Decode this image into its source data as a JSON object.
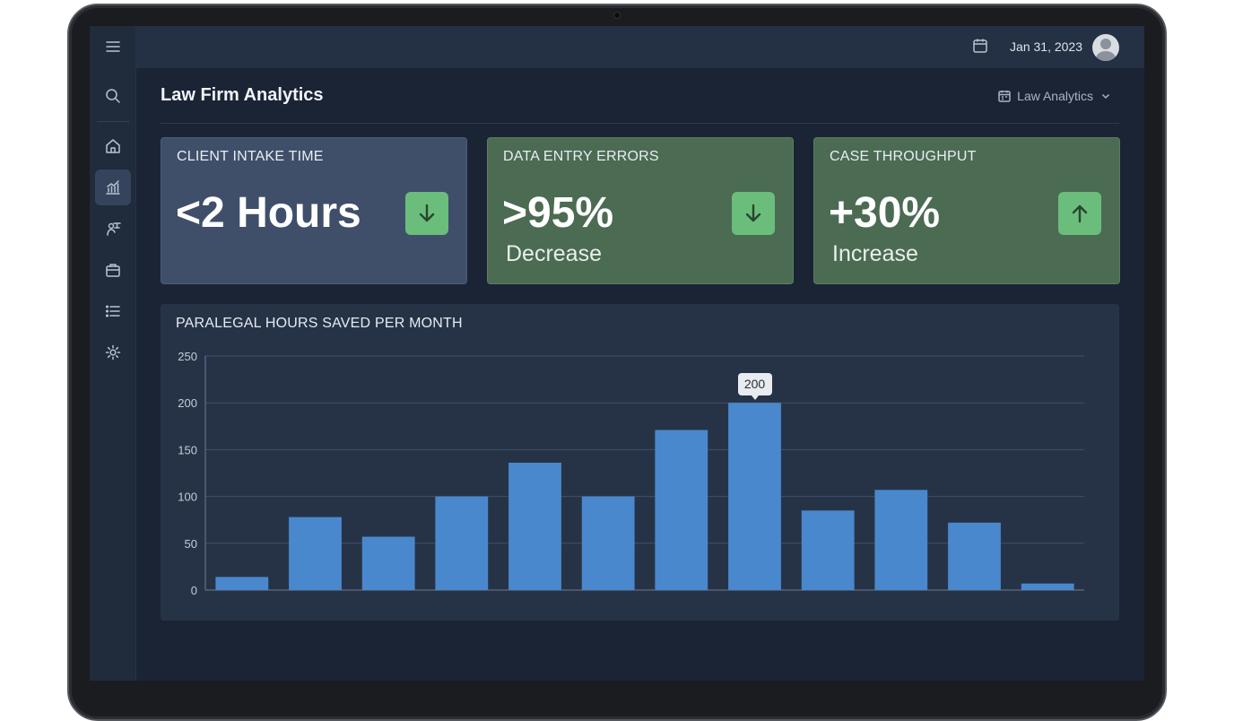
{
  "topbar": {
    "date": "Jan 31, 2023",
    "calendar_icon": "calendar-icon",
    "avatar_icon": "user-avatar"
  },
  "sidebar": {
    "items": [
      {
        "icon": "menu-icon"
      },
      {
        "icon": "search-icon"
      },
      {
        "icon": "home-icon"
      },
      {
        "icon": "analytics-icon",
        "active": true
      },
      {
        "icon": "user-scale-icon"
      },
      {
        "icon": "briefcase-icon"
      },
      {
        "icon": "list-icon"
      },
      {
        "icon": "gear-icon"
      }
    ]
  },
  "header": {
    "title": "Law Firm Analytics",
    "workspace_label": "Law Analytics"
  },
  "kpis": [
    {
      "label": "CLIENT INTAKE TIME",
      "value": "<2 Hours",
      "sub": "",
      "trend": "down",
      "color": "#3f4f6a"
    },
    {
      "label": "DATA ENTRY ERRORS",
      "value": ">95%",
      "sub": "Decrease",
      "trend": "down",
      "color": "#4b6b53"
    },
    {
      "label": "CASE THROUGHPUT",
      "value": "+30%",
      "sub": "Increase",
      "trend": "up",
      "color": "#4b6b53"
    }
  ],
  "colors": {
    "bar": "#4a88cd",
    "badge": "#6bbd7c"
  },
  "chart_data": {
    "type": "bar",
    "title": "PARALEGAL HOURS SAVED PER MONTH",
    "values": [
      14,
      78,
      57,
      100,
      136,
      100,
      171,
      200,
      85,
      107,
      72,
      7
    ],
    "ylim": [
      0,
      250
    ],
    "yticks": [
      0,
      50,
      100,
      150,
      200,
      250
    ],
    "grid": true,
    "highlight": {
      "index": 7,
      "label": "200"
    }
  }
}
